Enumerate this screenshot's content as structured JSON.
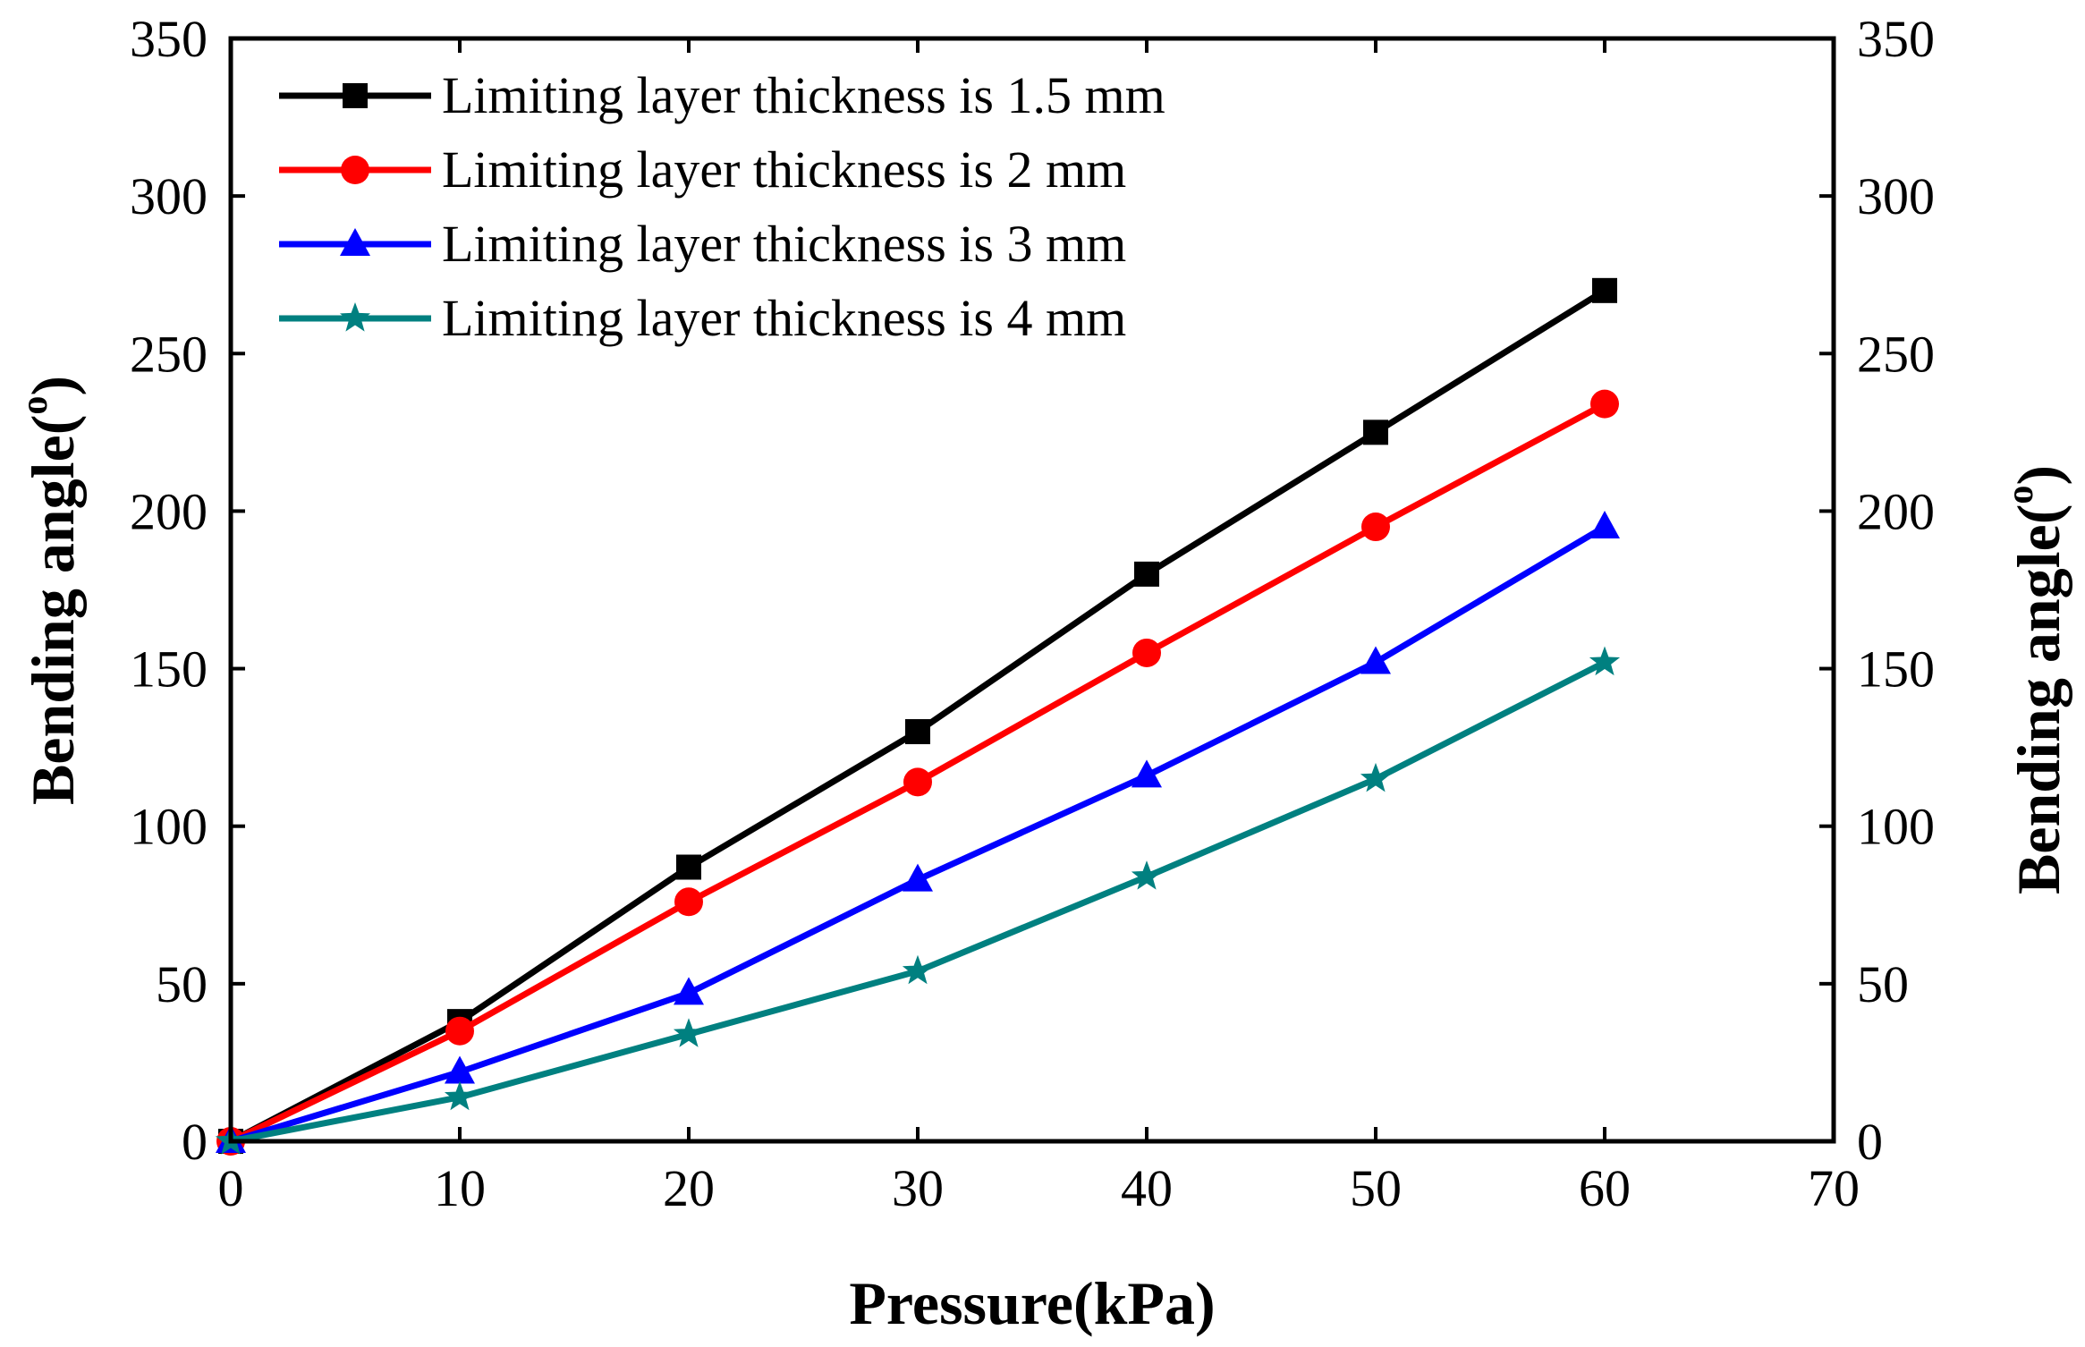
{
  "chart_data": {
    "type": "line",
    "xlabel": "Pressure(kPa)",
    "ylabel": "Bending angle",
    "ylabel_superscript": "o",
    "ylabel_open": "(",
    "ylabel_close": ")",
    "xlim": [
      0,
      70
    ],
    "ylim": [
      0,
      350
    ],
    "xticks": [
      0,
      10,
      20,
      30,
      40,
      50,
      60,
      70
    ],
    "yticks": [
      0,
      50,
      100,
      150,
      200,
      250,
      300,
      350
    ],
    "x": [
      0,
      10,
      20,
      30,
      40,
      50,
      60
    ],
    "legend_position": "top-left",
    "grid": false,
    "series": [
      {
        "name": "Limiting layer thickness is 1.5 mm",
        "color": "#000000",
        "marker": "square",
        "values": [
          0,
          38,
          87,
          130,
          180,
          225,
          270
        ]
      },
      {
        "name": "Limiting layer thickness is 2 mm",
        "color": "#ff0000",
        "marker": "circle",
        "values": [
          0,
          35,
          76,
          114,
          155,
          195,
          234
        ]
      },
      {
        "name": "Limiting layer thickness is 3 mm",
        "color": "#0000ff",
        "marker": "triangle",
        "values": [
          0,
          22,
          47,
          83,
          116,
          152,
          195
        ]
      },
      {
        "name": "Limiting layer thickness is 4 mm",
        "color": "#008080",
        "marker": "star",
        "values": [
          0,
          14,
          34,
          54,
          84,
          115,
          152
        ]
      }
    ]
  }
}
